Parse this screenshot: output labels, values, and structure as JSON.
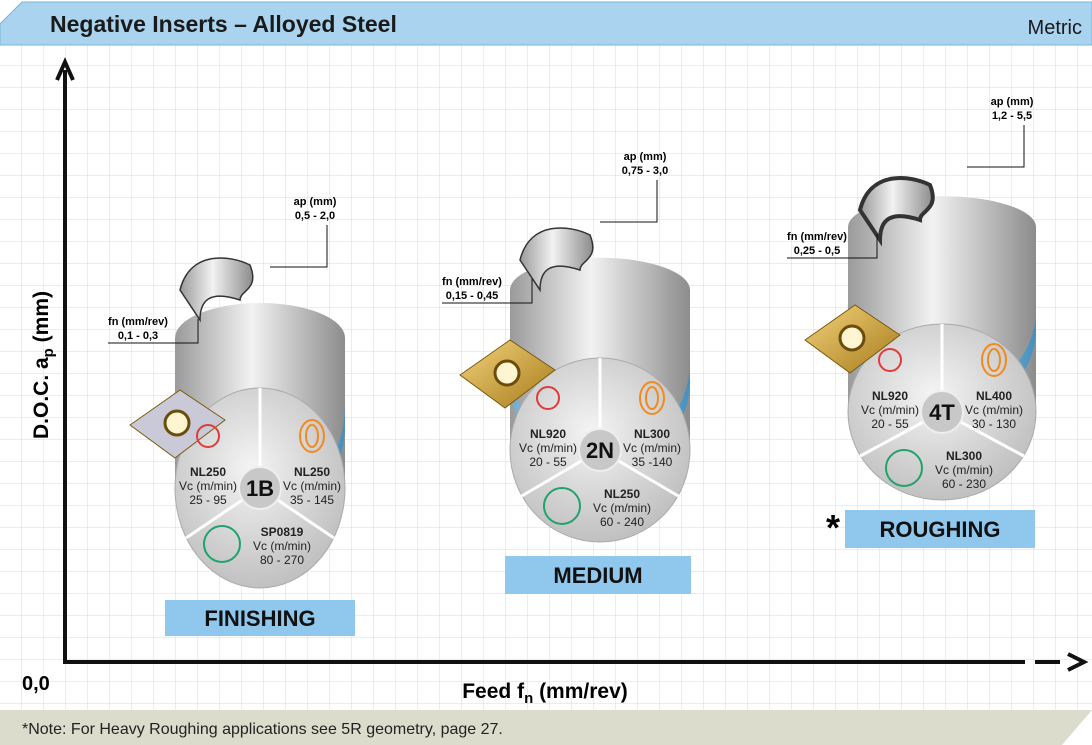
{
  "header": {
    "title": "Negative Inserts – Alloyed Steel",
    "unit": "Metric"
  },
  "axes": {
    "y_label": "D.O.C. a",
    "y_label_sub": "p",
    "y_label_suffix": " (mm)",
    "x_label": "Feed f",
    "x_label_sub": "n",
    "x_label_suffix": " (mm/rev)",
    "origin": "0,0"
  },
  "groups": [
    {
      "label": "FINISHING",
      "code": "1B",
      "ap_label": "ap (mm)",
      "ap": "0,5 - 2,0",
      "fn_label": "fn (mm/rev)",
      "fn": "0,1 - 0,3",
      "grades": [
        {
          "name": "NL250",
          "unit": "Vc (m/min)",
          "range": "25 - 95"
        },
        {
          "name": "NL250",
          "unit": "Vc (m/min)",
          "range": "35 - 145"
        },
        {
          "name": "SP0819",
          "unit": "Vc (m/min)",
          "range": "80 - 270"
        }
      ]
    },
    {
      "label": "MEDIUM",
      "code": "2N",
      "ap_label": "ap (mm)",
      "ap": "0,75 - 3,0",
      "fn_label": "fn (mm/rev)",
      "fn": "0,15 - 0,45",
      "grades": [
        {
          "name": "NL920",
          "unit": "Vc (m/min)",
          "range": "20 - 55"
        },
        {
          "name": "NL300",
          "unit": "Vc (m/min)",
          "range": "35 -140"
        },
        {
          "name": "NL250",
          "unit": "Vc (m/min)",
          "range": "60 - 240"
        }
      ]
    },
    {
      "label": "ROUGHING",
      "marker": "*",
      "code": "4T",
      "ap_label": "ap (mm)",
      "ap": "1,2 - 5,5",
      "fn_label": "fn (mm/rev)",
      "fn": "0,25 - 0,5",
      "grades": [
        {
          "name": "NL920",
          "unit": "Vc (m/min)",
          "range": "20 - 55"
        },
        {
          "name": "NL400",
          "unit": "Vc (m/min)",
          "range": "30 - 130"
        },
        {
          "name": "NL300",
          "unit": "Vc (m/min)",
          "range": "60 - 230"
        }
      ]
    }
  ],
  "footer": {
    "note": "*Note: For Heavy Roughing applications see 5R geometry, page 27."
  }
}
